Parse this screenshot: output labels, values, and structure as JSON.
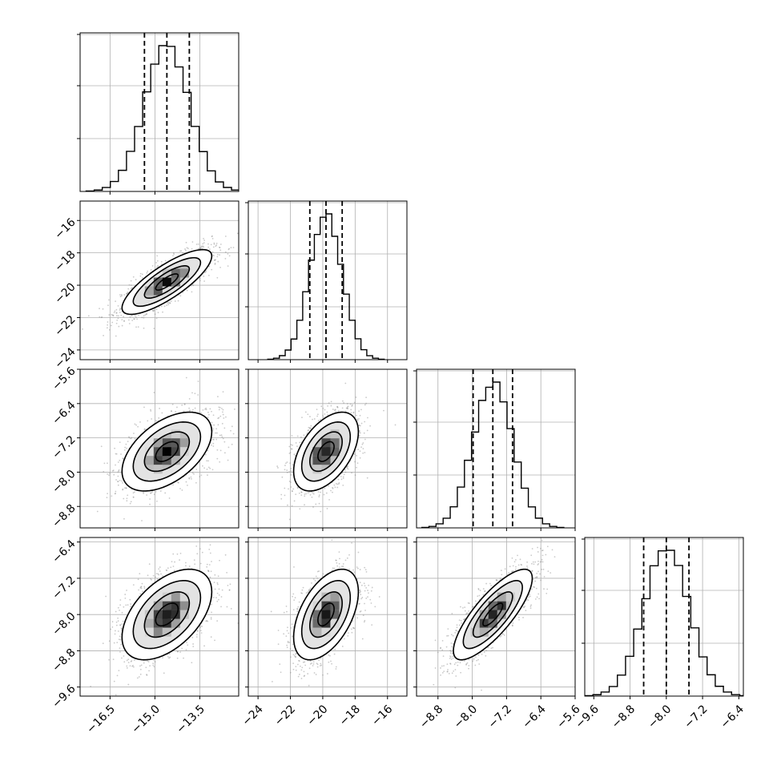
{
  "chart_data": {
    "type": "corner",
    "title": "",
    "parameters": [
      {
        "index": 0,
        "label": "",
        "range": [
          -17.5,
          -12.2
        ],
        "median": -14.6,
        "q16": -15.35,
        "q84": -13.85,
        "sd": 0.75
      },
      {
        "index": 1,
        "label": "",
        "range": [
          -24.6,
          -14.8
        ],
        "median": -19.8,
        "q16": -20.8,
        "q84": -18.8,
        "sd": 1.0
      },
      {
        "index": 2,
        "label": "",
        "range": [
          -9.3,
          -5.6
        ],
        "median": -7.52,
        "q16": -7.98,
        "q84": -7.06,
        "sd": 0.46
      },
      {
        "index": 3,
        "label": "",
        "range": [
          -9.8,
          -6.3
        ],
        "median": -8.0,
        "q16": -8.5,
        "q84": -7.5,
        "sd": 0.5
      }
    ],
    "correlations": [
      {
        "pair": [
          1,
          0
        ],
        "rho": 0.8
      },
      {
        "pair": [
          2,
          0
        ],
        "rho": 0.5
      },
      {
        "pair": [
          2,
          1
        ],
        "rho": 0.5
      },
      {
        "pair": [
          3,
          0
        ],
        "rho": 0.5
      },
      {
        "pair": [
          3,
          1
        ],
        "rho": 0.5
      },
      {
        "pair": [
          3,
          2
        ],
        "rho": 0.8
      }
    ],
    "x_ticks": [
      [
        "−16.5",
        "−15.0",
        "−13.5"
      ],
      [
        "−24",
        "−22",
        "−20",
        "−18",
        "−16"
      ],
      [
        "−8.8",
        "−8.0",
        "−7.2",
        "−6.4",
        "−5.6"
      ],
      [
        "−9.6",
        "−8.8",
        "−8.0",
        "−7.2",
        "−6.4"
      ]
    ],
    "y_ticks": [
      null,
      [
        "−24",
        "−22",
        "−20",
        "−18",
        "−16"
      ],
      [
        "−8.8",
        "−8.0",
        "−7.2",
        "−6.4",
        "−5.6"
      ],
      [
        "−9.6",
        "−8.8",
        "−8.0",
        "−7.2",
        "−6.4"
      ]
    ],
    "x_tick_values": [
      [
        -16.5,
        -15.0,
        -13.5
      ],
      [
        -24,
        -22,
        -20,
        -18,
        -16
      ],
      [
        -8.8,
        -8.0,
        -7.2,
        -6.4,
        -5.6
      ],
      [
        -9.6,
        -8.8,
        -8.0,
        -7.2,
        -6.4
      ]
    ],
    "y_tick_values": [
      null,
      [
        -24,
        -22,
        -20,
        -18,
        -16
      ],
      [
        -8.8,
        -8.0,
        -7.2,
        -6.4,
        -5.6
      ],
      [
        -9.6,
        -8.8,
        -8.0,
        -7.2,
        -6.4
      ]
    ],
    "histogram_bins": 20,
    "contour_levels_sigma": [
      0.5,
      1.0,
      1.5,
      2.0
    ],
    "quantile_lines": "dashed at 16%, 50%, 84%",
    "grid": true,
    "colors": {
      "points": "#8a8a8a",
      "line": "#000000",
      "grid": "#b0b0b0",
      "frame": "#000000"
    }
  }
}
